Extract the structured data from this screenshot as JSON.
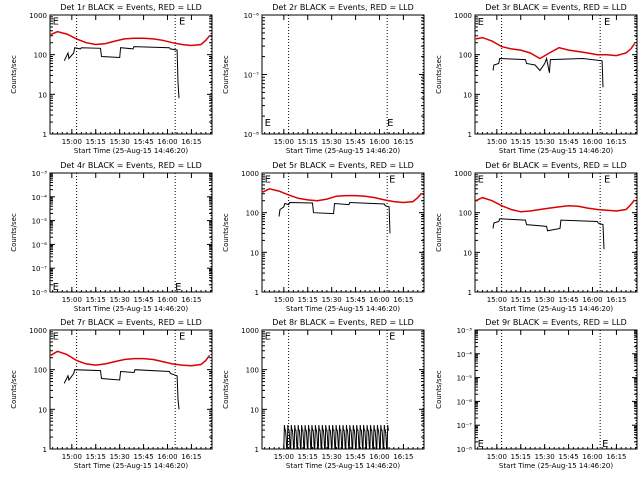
{
  "colors": {
    "events": "#000000",
    "lld": "#dd0000",
    "axis": "#000000",
    "background": "#ffffff"
  },
  "x_axis": {
    "label": "Start Time (25-Aug-15 14:46:20)",
    "ticks": [
      {
        "t": 15.0,
        "label": "15:00"
      },
      {
        "t": 15.25,
        "label": "15:15"
      },
      {
        "t": 15.5,
        "label": "15:30"
      },
      {
        "t": 15.75,
        "label": "15:45"
      },
      {
        "t": 16.0,
        "label": "16:00"
      },
      {
        "t": 16.25,
        "label": "16:15"
      }
    ]
  },
  "chart_data": [
    {
      "type": "line",
      "title": "Det 1r BLACK = Events, RED = LLD",
      "ylabel": "Counts/sec",
      "yscale": "log",
      "ylim": [
        1,
        1000
      ],
      "yticks": [
        {
          "v": 1,
          "label": "1"
        },
        {
          "v": 10,
          "label": "10"
        },
        {
          "v": 100,
          "label": "100"
        },
        {
          "v": 1000,
          "label": "1000"
        }
      ],
      "xlim": [
        14.772,
        16.465
      ],
      "vlines": [
        15.05,
        16.08
      ],
      "e_markers": [
        {
          "t": 14.8,
          "v": 720
        },
        {
          "t": 16.12,
          "v": 720
        }
      ],
      "series": [
        {
          "role": "lld",
          "x": [
            14.78,
            14.85,
            14.95,
            15.05,
            15.15,
            15.25,
            15.35,
            15.45,
            15.55,
            15.65,
            15.75,
            15.85,
            15.95,
            16.05,
            16.15,
            16.25,
            16.35,
            16.4,
            16.44
          ],
          "y": [
            320,
            380,
            330,
            250,
            200,
            180,
            190,
            220,
            250,
            260,
            260,
            250,
            230,
            200,
            180,
            170,
            180,
            230,
            300
          ]
        },
        {
          "role": "events",
          "x": [
            14.92,
            14.96,
            14.97,
            15.02,
            15.03,
            15.09,
            15.1,
            15.3,
            15.31,
            15.5,
            15.51,
            15.64,
            15.65,
            16.02,
            16.03,
            16.1,
            16.11,
            16.12
          ],
          "y": [
            70,
            110,
            80,
            110,
            150,
            140,
            150,
            145,
            90,
            85,
            150,
            140,
            160,
            150,
            140,
            130,
            20,
            8
          ]
        }
      ]
    },
    {
      "type": "line",
      "title": "Det 2r BLACK = Events, RED = LLD",
      "ylabel": "Counts/sec",
      "yscale": "log",
      "ylim": [
        1e-08,
        1e-06
      ],
      "yticks": [
        {
          "v": 1e-08,
          "label": "10⁻⁸"
        },
        {
          "v": 1e-07,
          "label": "10⁻⁷"
        },
        {
          "v": 1e-06,
          "label": "10⁻⁶"
        }
      ],
      "xlim": [
        14.772,
        16.465
      ],
      "vlines": [
        15.05,
        16.08
      ],
      "e_markers": [
        {
          "t": 14.8,
          "v": 1.6e-08
        },
        {
          "t": 16.08,
          "v": 1.6e-08
        }
      ],
      "series": []
    },
    {
      "type": "line",
      "title": "Det 3r BLACK = Events, RED = LLD",
      "ylabel": "Counts/sec",
      "yscale": "log",
      "ylim": [
        1,
        1000
      ],
      "yticks": [
        {
          "v": 1,
          "label": "1"
        },
        {
          "v": 10,
          "label": "10"
        },
        {
          "v": 100,
          "label": "100"
        },
        {
          "v": 1000,
          "label": "1000"
        }
      ],
      "xlim": [
        14.772,
        16.465
      ],
      "vlines": [
        15.05,
        16.08
      ],
      "e_markers": [
        {
          "t": 14.8,
          "v": 700
        },
        {
          "t": 16.12,
          "v": 700
        }
      ],
      "series": [
        {
          "role": "lld",
          "x": [
            14.78,
            14.85,
            14.95,
            15.05,
            15.15,
            15.25,
            15.35,
            15.45,
            15.55,
            15.65,
            15.75,
            15.85,
            15.95,
            16.05,
            16.15,
            16.25,
            16.35,
            16.4,
            16.44
          ],
          "y": [
            250,
            270,
            220,
            160,
            140,
            130,
            110,
            80,
            110,
            150,
            130,
            120,
            110,
            100,
            100,
            95,
            110,
            140,
            190
          ]
        },
        {
          "role": "events",
          "x": [
            14.96,
            14.97,
            15.02,
            15.03,
            15.3,
            15.31,
            15.4,
            15.45,
            15.5,
            15.52,
            15.55,
            15.56,
            15.9,
            16.1,
            16.11
          ],
          "y": [
            40,
            55,
            60,
            80,
            75,
            60,
            55,
            40,
            60,
            80,
            35,
            75,
            80,
            70,
            15
          ]
        }
      ]
    },
    {
      "type": "line",
      "title": "Det 4r BLACK = Events, RED = LLD",
      "ylabel": "Counts/sec",
      "yscale": "log",
      "ylim": [
        1e-08,
        0.001
      ],
      "yticks": [
        {
          "v": 1e-08,
          "label": "10⁻⁸"
        },
        {
          "v": 1e-07,
          "label": "10⁻⁷"
        },
        {
          "v": 1e-06,
          "label": "10⁻⁶"
        },
        {
          "v": 1e-05,
          "label": "10⁻⁵"
        },
        {
          "v": 0.0001,
          "label": "10⁻⁴"
        },
        {
          "v": 0.001,
          "label": "10⁻³"
        }
      ],
      "xlim": [
        14.772,
        16.465
      ],
      "vlines": [
        15.05,
        16.08
      ],
      "e_markers": [
        {
          "t": 14.8,
          "v": 1.8e-08
        },
        {
          "t": 16.08,
          "v": 1.8e-08
        }
      ],
      "series": []
    },
    {
      "type": "line",
      "title": "Det 5r BLACK = Events, RED = LLD",
      "ylabel": "Counts/sec",
      "yscale": "log",
      "ylim": [
        1,
        1000
      ],
      "yticks": [
        {
          "v": 1,
          "label": "1"
        },
        {
          "v": 10,
          "label": "10"
        },
        {
          "v": 100,
          "label": "100"
        },
        {
          "v": 1000,
          "label": "1000"
        }
      ],
      "xlim": [
        14.772,
        16.465
      ],
      "vlines": [
        15.05,
        16.08
      ],
      "e_markers": [
        {
          "t": 14.8,
          "v": 720
        },
        {
          "t": 16.1,
          "v": 720
        }
      ],
      "series": [
        {
          "role": "lld",
          "x": [
            14.78,
            14.85,
            14.95,
            15.05,
            15.15,
            15.25,
            15.35,
            15.45,
            15.55,
            15.65,
            15.75,
            15.85,
            15.95,
            16.05,
            16.15,
            16.25,
            16.35,
            16.4,
            16.44
          ],
          "y": [
            330,
            400,
            350,
            280,
            230,
            210,
            200,
            220,
            260,
            270,
            270,
            260,
            240,
            210,
            190,
            180,
            190,
            240,
            310
          ]
        },
        {
          "role": "events",
          "x": [
            14.95,
            14.96,
            15.0,
            15.01,
            15.05,
            15.06,
            15.3,
            15.31,
            15.52,
            15.53,
            15.68,
            15.69,
            16.05,
            16.06,
            16.1,
            16.11
          ],
          "y": [
            80,
            120,
            140,
            170,
            160,
            180,
            175,
            100,
            95,
            170,
            160,
            180,
            165,
            150,
            140,
            30
          ]
        }
      ]
    },
    {
      "type": "line",
      "title": "Det 6r BLACK = Events, RED = LLD",
      "ylabel": "Counts/sec",
      "yscale": "log",
      "ylim": [
        1,
        1000
      ],
      "yticks": [
        {
          "v": 1,
          "label": "1"
        },
        {
          "v": 10,
          "label": "10"
        },
        {
          "v": 100,
          "label": "100"
        },
        {
          "v": 1000,
          "label": "1000"
        }
      ],
      "xlim": [
        14.772,
        16.465
      ],
      "vlines": [
        15.05,
        16.08
      ],
      "e_markers": [
        {
          "t": 14.8,
          "v": 720
        },
        {
          "t": 16.12,
          "v": 720
        }
      ],
      "series": [
        {
          "role": "lld",
          "x": [
            14.78,
            14.85,
            14.95,
            15.05,
            15.15,
            15.25,
            15.35,
            15.45,
            15.55,
            15.65,
            15.75,
            15.85,
            15.95,
            16.05,
            16.15,
            16.25,
            16.35,
            16.4,
            16.44
          ],
          "y": [
            200,
            240,
            200,
            150,
            120,
            105,
            110,
            120,
            130,
            140,
            150,
            145,
            130,
            120,
            115,
            110,
            120,
            160,
            210
          ]
        },
        {
          "role": "events",
          "x": [
            14.96,
            14.97,
            15.02,
            15.03,
            15.3,
            15.31,
            15.52,
            15.53,
            15.66,
            15.67,
            16.05,
            16.06,
            16.11,
            16.12
          ],
          "y": [
            40,
            55,
            60,
            70,
            65,
            50,
            45,
            35,
            40,
            65,
            60,
            55,
            50,
            12
          ]
        }
      ]
    },
    {
      "type": "line",
      "title": "Det 7r BLACK = Events, RED = LLD",
      "ylabel": "Counts/sec",
      "yscale": "log",
      "ylim": [
        1,
        1000
      ],
      "yticks": [
        {
          "v": 1,
          "label": "1"
        },
        {
          "v": 10,
          "label": "10"
        },
        {
          "v": 100,
          "label": "100"
        },
        {
          "v": 1000,
          "label": "1000"
        }
      ],
      "xlim": [
        14.772,
        16.465
      ],
      "vlines": [
        15.05,
        16.08
      ],
      "e_markers": [
        {
          "t": 14.8,
          "v": 720
        },
        {
          "t": 16.12,
          "v": 720
        }
      ],
      "series": [
        {
          "role": "lld",
          "x": [
            14.78,
            14.85,
            14.95,
            15.05,
            15.15,
            15.25,
            15.35,
            15.45,
            15.55,
            15.65,
            15.75,
            15.85,
            15.95,
            16.05,
            16.15,
            16.25,
            16.35,
            16.4,
            16.44
          ],
          "y": [
            230,
            290,
            240,
            170,
            140,
            130,
            140,
            160,
            180,
            190,
            190,
            180,
            160,
            140,
            130,
            125,
            135,
            170,
            230
          ]
        },
        {
          "role": "events",
          "x": [
            14.92,
            14.96,
            14.97,
            15.02,
            15.03,
            15.3,
            15.31,
            15.5,
            15.51,
            15.65,
            15.66,
            16.02,
            16.03,
            16.1,
            16.11,
            16.12
          ],
          "y": [
            45,
            70,
            55,
            80,
            100,
            95,
            60,
            55,
            90,
            85,
            100,
            90,
            80,
            70,
            18,
            10
          ]
        }
      ]
    },
    {
      "type": "line",
      "title": "Det 8r BLACK = Events, RED = LLD",
      "ylabel": "Counts/sec",
      "yscale": "log",
      "ylim": [
        1,
        1000
      ],
      "yticks": [
        {
          "v": 1,
          "label": "1"
        },
        {
          "v": 10,
          "label": "10"
        },
        {
          "v": 100,
          "label": "100"
        },
        {
          "v": 1000,
          "label": "1000"
        }
      ],
      "xlim": [
        14.772,
        16.465
      ],
      "vlines": [
        15.05,
        16.08
      ],
      "e_markers": [
        {
          "t": 14.8,
          "v": 720
        },
        {
          "t": 16.1,
          "v": 720
        }
      ],
      "series": [
        {
          "role": "events",
          "type": "noise",
          "x_start": 15.0,
          "x_end": 16.1,
          "levels": [
            1,
            2,
            3,
            4
          ]
        }
      ]
    },
    {
      "type": "line",
      "title": "Det 9r BLACK = Events, RED = LLD",
      "ylabel": "Counts/sec",
      "yscale": "log",
      "ylim": [
        1e-08,
        0.001
      ],
      "yticks": [
        {
          "v": 1e-08,
          "label": "10⁻⁸"
        },
        {
          "v": 1e-07,
          "label": "10⁻⁷"
        },
        {
          "v": 1e-06,
          "label": "10⁻⁶"
        },
        {
          "v": 1e-05,
          "label": "10⁻⁵"
        },
        {
          "v": 0.0001,
          "label": "10⁻⁴"
        },
        {
          "v": 0.001,
          "label": "10⁻³"
        }
      ],
      "xlim": [
        14.772,
        16.465
      ],
      "vlines": [
        15.05,
        16.08
      ],
      "e_markers": [
        {
          "t": 14.8,
          "v": 1.8e-08
        },
        {
          "t": 16.1,
          "v": 1.8e-08
        }
      ],
      "series": []
    }
  ]
}
